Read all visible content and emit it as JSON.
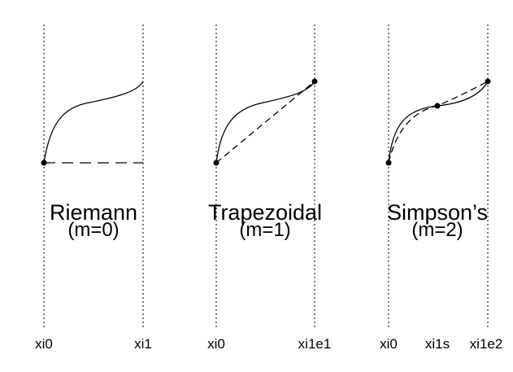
{
  "colors": {
    "line": "#000000",
    "background": "#ffffff"
  },
  "panels": [
    {
      "name": "riemann",
      "title": "Riemann",
      "subtitle": "(m=0)",
      "ticks": [
        "xi0",
        "xi1"
      ]
    },
    {
      "name": "trapezoidal",
      "title": "Trapezoidal",
      "subtitle": "(m=1)",
      "ticks": [
        "xi0",
        "xi1e1"
      ]
    },
    {
      "name": "simpsons",
      "title": "Simpson’s",
      "subtitle": "(m=2)",
      "ticks": [
        "xi0",
        "xi1s",
        "xi1e2"
      ]
    }
  ]
}
